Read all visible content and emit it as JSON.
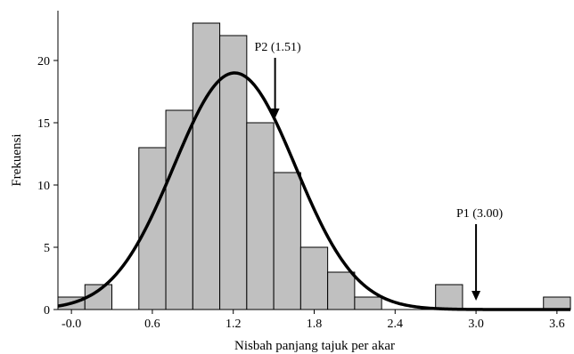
{
  "chart_data": {
    "type": "bar",
    "xlabel": "Nisbah panjang tajuk per akar",
    "ylabel": "Frekuensi",
    "xlim": [
      -0.1,
      3.7
    ],
    "ylim": [
      0,
      24
    ],
    "grid": false,
    "bin_width": 0.2,
    "x_ticks": [
      -0.0,
      0.6,
      1.2,
      1.8,
      2.4,
      3.0,
      3.6
    ],
    "x_tick_labels": [
      "-0.0",
      "0.6",
      "1.2",
      "1.8",
      "2.4",
      "3.0",
      "3.6"
    ],
    "y_ticks": [
      0,
      5,
      10,
      15,
      20
    ],
    "y_tick_labels": [
      "0",
      "5",
      "10",
      "15",
      "20"
    ],
    "bars": [
      {
        "x": 0.0,
        "count": 1
      },
      {
        "x": 0.2,
        "count": 2
      },
      {
        "x": 0.4,
        "count": 0
      },
      {
        "x": 0.6,
        "count": 13
      },
      {
        "x": 0.8,
        "count": 16
      },
      {
        "x": 1.0,
        "count": 23
      },
      {
        "x": 1.2,
        "count": 22
      },
      {
        "x": 1.4,
        "count": 15
      },
      {
        "x": 1.6,
        "count": 11
      },
      {
        "x": 1.8,
        "count": 5
      },
      {
        "x": 2.0,
        "count": 3
      },
      {
        "x": 2.2,
        "count": 1
      },
      {
        "x": 2.4,
        "count": 0
      },
      {
        "x": 2.6,
        "count": 0
      },
      {
        "x": 2.8,
        "count": 2
      },
      {
        "x": 3.0,
        "count": 0
      },
      {
        "x": 3.2,
        "count": 0
      },
      {
        "x": 3.4,
        "count": 0
      },
      {
        "x": 3.6,
        "count": 1
      }
    ],
    "fit_curve": {
      "type": "normal",
      "mean": 1.21,
      "sd": 0.45,
      "peak": 19
    },
    "annotations": [
      {
        "label": "P2 (1.51)",
        "x": 1.51
      },
      {
        "label": "P1 (3.00)",
        "x": 3.0
      }
    ],
    "colors": {
      "bar_fill": "#c0c0c0",
      "bar_stroke": "#000000",
      "curve": "#000000"
    }
  }
}
